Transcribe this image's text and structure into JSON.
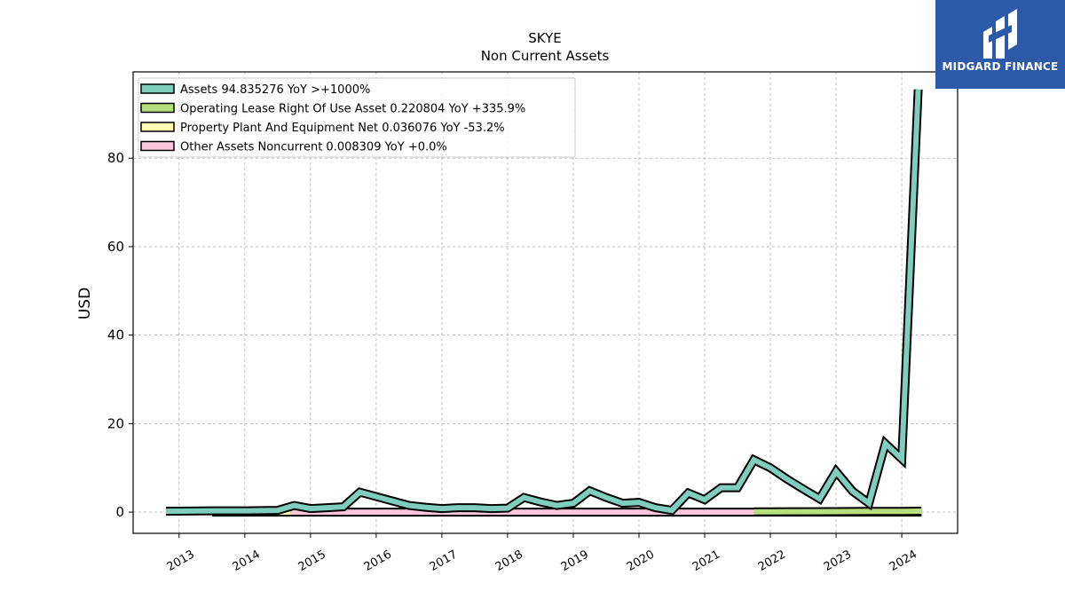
{
  "chart_data": {
    "type": "line",
    "title": "SKYE",
    "subtitle": "Non Current  Assets",
    "ylabel": "USD",
    "xlabel": "",
    "xlim": [
      2012.3,
      2024.85
    ],
    "ylim": [
      -4.8,
      99.5
    ],
    "x_ticks": [
      "2013",
      "2014",
      "2015",
      "2016",
      "2017",
      "2018",
      "2019",
      "2020",
      "2021",
      "2022",
      "2023",
      "2024"
    ],
    "y_ticks": [
      0,
      20,
      40,
      60,
      80
    ],
    "grid": true,
    "legend_position": "top-left",
    "series": [
      {
        "name": "Assets  94.835276 YoY >+1000%",
        "color": "#7fcdbb",
        "x": [
          2012.8,
          2013.5,
          2014.0,
          2014.5,
          2014.75,
          2015.0,
          2015.25,
          2015.5,
          2015.75,
          2016.0,
          2016.25,
          2016.5,
          2016.75,
          2017.0,
          2017.25,
          2017.5,
          2017.75,
          2018.0,
          2018.25,
          2018.5,
          2018.75,
          2019.0,
          2019.25,
          2019.5,
          2019.75,
          2020.0,
          2020.25,
          2020.5,
          2020.75,
          2021.0,
          2021.25,
          2021.5,
          2021.75,
          2022.0,
          2022.25,
          2022.5,
          2022.75,
          2023.0,
          2023.25,
          2023.5,
          2023.75,
          2024.0,
          2024.25
        ],
        "y": [
          0.2,
          0.3,
          0.3,
          0.4,
          1.5,
          0.8,
          1.0,
          1.2,
          4.5,
          3.5,
          2.5,
          1.5,
          1.1,
          0.8,
          1.0,
          1.0,
          0.8,
          0.9,
          3.3,
          2.3,
          1.5,
          2.0,
          4.8,
          3.3,
          2.0,
          2.2,
          1.0,
          0.4,
          4.3,
          2.8,
          5.5,
          5.5,
          11.8,
          10.0,
          7.5,
          5.2,
          3.0,
          9.2,
          4.7,
          2.0,
          15.5,
          12.0,
          95.5
        ]
      },
      {
        "name": "Operating Lease Right Of Use Asset  0.220804 YoY +335.9%",
        "color": "#b5de7c",
        "x": [
          2021.75,
          2022.0,
          2022.5,
          2023.0,
          2023.5,
          2024.0,
          2024.3
        ],
        "y": [
          0.05,
          0.08,
          0.1,
          0.12,
          0.15,
          0.18,
          0.22
        ]
      },
      {
        "name": "Property Plant And Equipment Net  0.036076 YoY -53.2%",
        "color": "#ffffb3",
        "x": [
          2013.5,
          2014.0,
          2014.5,
          2014.7
        ],
        "y": [
          0.0,
          0.0,
          0.0,
          0.0
        ]
      },
      {
        "name": "Other Assets Noncurrent  0.008309 YoY +0.0%",
        "color": "#fbc6dc",
        "x": [
          2014.7,
          2016.0,
          2018.0,
          2020.0,
          2022.0,
          2024.3
        ],
        "y": [
          0.0,
          0.0,
          0.0,
          0.0,
          0.0,
          0.0
        ]
      }
    ]
  },
  "logo": {
    "text": "MIDGARD FINANCE"
  }
}
